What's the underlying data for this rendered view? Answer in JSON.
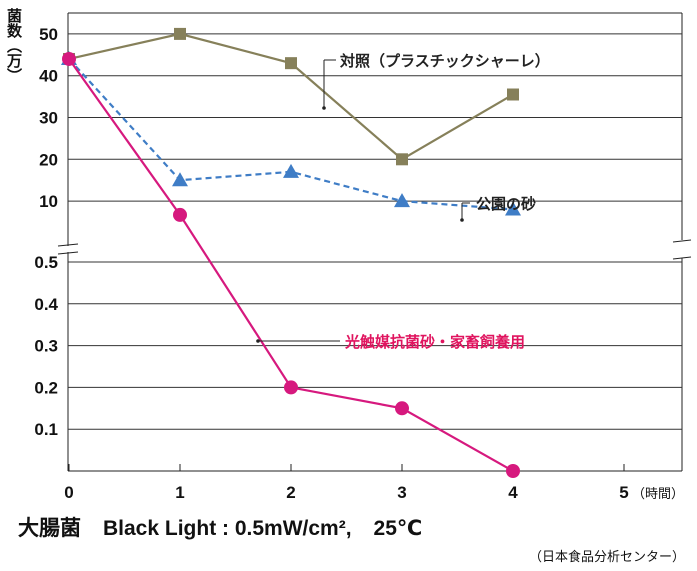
{
  "chart_data": [
    {
      "type": "line",
      "panel": "upper",
      "ylabel": "菌数（万）",
      "ylim": [
        0,
        55
      ],
      "yticks": [
        10,
        20,
        30,
        40,
        50
      ],
      "x": [
        0,
        1,
        2,
        3,
        4
      ],
      "series": [
        {
          "name": "対照（プラスチックシャーレ）",
          "color": "#86805a",
          "marker": "square",
          "dash": "solid",
          "values": [
            44,
            50,
            43,
            20,
            35.5
          ]
        },
        {
          "name": "公園の砂",
          "color": "#3f7dc6",
          "marker": "triangle",
          "dash": "dashed",
          "values": [
            44,
            15,
            17,
            10,
            8
          ]
        },
        {
          "name": "光触媒抗菌砂・家畜飼養用",
          "color": "#d6197e",
          "marker": "circle",
          "dash": "solid",
          "values": [
            44,
            6.7,
            null,
            null,
            null
          ]
        }
      ]
    },
    {
      "type": "line",
      "panel": "lower",
      "ylim": [
        0,
        0.53
      ],
      "yticks": [
        0.1,
        0.2,
        0.3,
        0.4,
        0.5
      ],
      "x": [
        1,
        2,
        3,
        4
      ],
      "series": [
        {
          "name": "光触媒抗菌砂・家畜飼養用",
          "color": "#d6197e",
          "marker": "circle",
          "dash": "solid",
          "values": [
            null,
            0.2,
            0.15,
            0.0
          ]
        }
      ]
    }
  ],
  "xaxis": {
    "ticks": [
      "0",
      "1",
      "2",
      "3",
      "4",
      "5"
    ],
    "unit": "（時間）",
    "xlim": [
      0,
      5.5
    ]
  },
  "labels": {
    "ylabel": "菌数（万）",
    "control": "対照（プラスチックシャーレ）",
    "park_sand": "公園の砂",
    "photocatalyst": "光触媒抗菌砂・家畜飼養用"
  },
  "footer": {
    "organism": "大腸菌",
    "condition": "Black Light : 0.5mW/cm²,",
    "temperature": "25℃",
    "source": "（日本食品分析センター）"
  }
}
